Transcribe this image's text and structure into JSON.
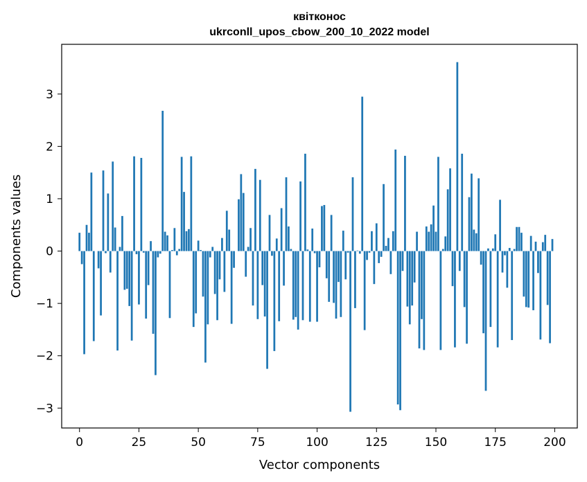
{
  "chart_data": {
    "type": "bar",
    "title": "квітконос",
    "subtitle": "ukrconll_upos_cbow_200_10_2022 model",
    "xlabel": "Vector components",
    "ylabel": "Components values",
    "xlim": [
      -7.5,
      209.5
    ],
    "ylim": [
      -3.38,
      3.95
    ],
    "xticks": [
      0,
      25,
      50,
      75,
      100,
      125,
      150,
      175,
      200
    ],
    "xtick_labels": [
      "0",
      "25",
      "50",
      "75",
      "100",
      "125",
      "150",
      "175",
      "200"
    ],
    "yticks": [
      -3,
      -2,
      -1,
      0,
      1,
      2,
      3
    ],
    "ytick_labels": [
      "−3",
      "−2",
      "−1",
      "0",
      "1",
      "2",
      "3"
    ],
    "bar_color": "#1f77b4",
    "x": [
      0,
      1,
      2,
      3,
      4,
      5,
      6,
      7,
      8,
      9,
      10,
      11,
      12,
      13,
      14,
      15,
      16,
      17,
      18,
      19,
      20,
      21,
      22,
      23,
      24,
      25,
      26,
      27,
      28,
      29,
      30,
      31,
      32,
      33,
      34,
      35,
      36,
      37,
      38,
      39,
      40,
      41,
      42,
      43,
      44,
      45,
      46,
      47,
      48,
      49,
      50,
      51,
      52,
      53,
      54,
      55,
      56,
      57,
      58,
      59,
      60,
      61,
      62,
      63,
      64,
      65,
      66,
      67,
      68,
      69,
      70,
      71,
      72,
      73,
      74,
      75,
      76,
      77,
      78,
      79,
      80,
      81,
      82,
      83,
      84,
      85,
      86,
      87,
      88,
      89,
      90,
      91,
      92,
      93,
      94,
      95,
      96,
      97,
      98,
      99,
      100,
      101,
      102,
      103,
      104,
      105,
      106,
      107,
      108,
      109,
      110,
      111,
      112,
      113,
      114,
      115,
      116,
      117,
      118,
      119,
      120,
      121,
      122,
      123,
      124,
      125,
      126,
      127,
      128,
      129,
      130,
      131,
      132,
      133,
      134,
      135,
      136,
      137,
      138,
      139,
      140,
      141,
      142,
      143,
      144,
      145,
      146,
      147,
      148,
      149,
      150,
      151,
      152,
      153,
      154,
      155,
      156,
      157,
      158,
      159,
      160,
      161,
      162,
      163,
      164,
      165,
      166,
      167,
      168,
      169,
      170,
      171,
      172,
      173,
      174,
      175,
      176,
      177,
      178,
      179,
      180,
      181,
      182,
      183,
      184,
      185,
      186,
      187,
      188,
      189,
      190,
      191,
      192,
      193,
      194,
      195,
      196,
      197,
      198,
      199
    ],
    "values": [
      0.35,
      -0.25,
      -1.97,
      0.5,
      0.35,
      1.5,
      -1.72,
      0.0,
      -0.33,
      -1.23,
      1.54,
      -0.04,
      1.1,
      -0.41,
      1.71,
      0.45,
      -1.9,
      0.08,
      0.67,
      -0.74,
      -0.72,
      -1.05,
      -1.71,
      1.81,
      -0.06,
      -1.02,
      1.78,
      -0.03,
      -1.29,
      -0.65,
      0.19,
      -1.58,
      -2.37,
      -0.12,
      -0.05,
      2.68,
      0.37,
      0.3,
      -1.28,
      0.02,
      0.44,
      -0.08,
      0.04,
      1.8,
      1.13,
      0.38,
      0.42,
      1.81,
      -1.45,
      -1.19,
      0.2,
      0.02,
      -0.87,
      -2.13,
      -1.4,
      -0.12,
      0.08,
      -0.82,
      -1.32,
      -0.54,
      0.25,
      -0.78,
      0.77,
      0.41,
      -1.39,
      -0.32,
      0.0,
      0.99,
      1.47,
      1.11,
      -0.49,
      0.08,
      0.44,
      -1.04,
      1.57,
      -1.3,
      1.36,
      -0.65,
      -1.25,
      -2.25,
      0.69,
      -0.09,
      -1.91,
      0.24,
      -1.34,
      0.82,
      -0.66,
      1.41,
      0.47,
      0.04,
      -1.31,
      -1.26,
      -1.5,
      1.33,
      -1.32,
      1.86,
      0.03,
      -1.35,
      0.43,
      -0.04,
      -1.35,
      -0.31,
      0.86,
      0.88,
      -0.52,
      -0.97,
      0.69,
      -0.99,
      -1.29,
      -0.59,
      -1.26,
      0.39,
      -0.54,
      -0.03,
      -3.07,
      1.41,
      -1.09,
      0.01,
      -0.05,
      2.95,
      -1.51,
      -0.17,
      -0.03,
      0.38,
      -0.63,
      0.53,
      -0.23,
      -0.11,
      1.28,
      0.1,
      0.25,
      -0.44,
      0.38,
      1.94,
      -2.93,
      -3.04,
      -0.38,
      1.82,
      -1.06,
      -1.4,
      -1.04,
      -0.6,
      0.37,
      -1.86,
      -1.3,
      -1.89,
      0.47,
      0.37,
      0.51,
      0.87,
      0.37,
      1.8,
      -1.89,
      0.04,
      0.28,
      1.18,
      1.58,
      -0.67,
      -1.84,
      3.61,
      -0.38,
      1.86,
      -1.07,
      -1.77,
      1.03,
      1.48,
      0.41,
      0.34,
      1.39,
      -0.26,
      -1.57,
      -2.67,
      0.05,
      -1.45,
      0.05,
      0.32,
      -1.84,
      0.98,
      -0.41,
      -0.08,
      -0.7,
      0.06,
      -1.7,
      0.04,
      0.46,
      0.46,
      0.35,
      -0.87,
      -1.07,
      -1.08,
      0.29,
      -1.13,
      0.18,
      -0.42,
      -1.69,
      0.17,
      0.31,
      -1.03,
      -1.76,
      0.23
    ]
  }
}
